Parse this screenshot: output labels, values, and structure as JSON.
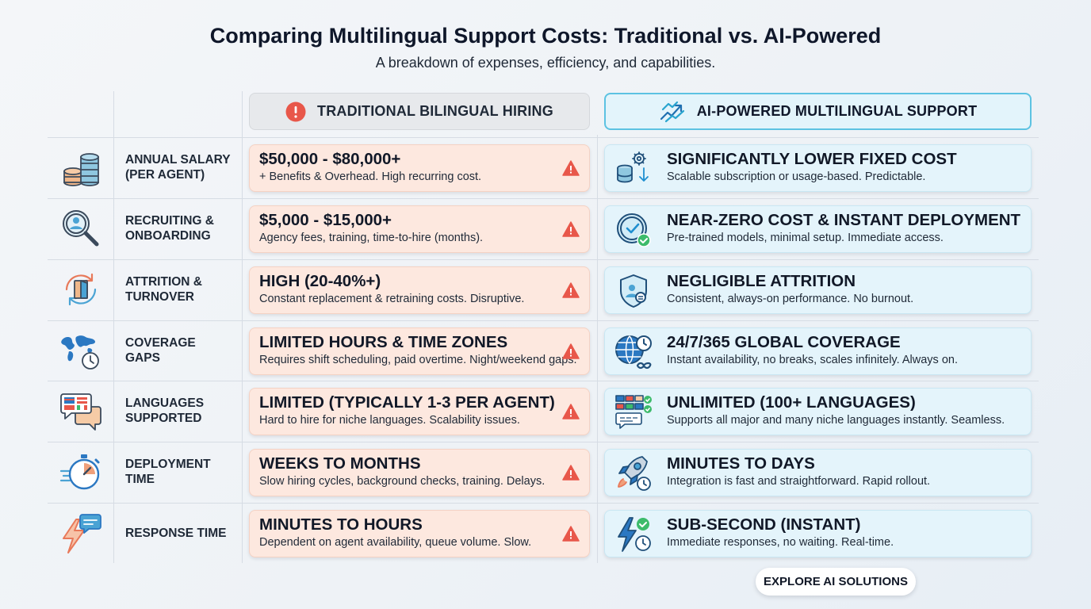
{
  "header": {
    "title": "Comparing Multilingual Support Costs: Traditional vs. AI-Powered",
    "subtitle": "A breakdown of expenses, efficiency, and capabilities."
  },
  "columns": {
    "traditional": {
      "label": "TRADITIONAL BILINGUAL HIRING",
      "icon": "alert-circle-icon"
    },
    "ai": {
      "label": "AI-POWERED MULTILINGUAL SUPPORT",
      "icon": "trend-arrows-icon"
    }
  },
  "colors": {
    "traditional_card": "#fde8df",
    "ai_card": "#e4f4fb",
    "ai_header_border": "#5cc2e2",
    "warning": "#e8574a"
  },
  "rows": [
    {
      "label_line1": "ANNUAL SALARY",
      "label_line2": "(PER AGENT)",
      "icon": "coins-stack-icon",
      "traditional": {
        "title": "$50,000 - $80,000+",
        "subtitle": "+ Benefits & Overhead. High recurring cost."
      },
      "ai": {
        "title": "SIGNIFICANTLY LOWER FIXED COST",
        "subtitle": "Scalable subscription or usage-based. Predictable.",
        "icon": "coins-gear-down-icon"
      }
    },
    {
      "label_line1": "RECRUITING &",
      "label_line2": "ONBOARDING",
      "icon": "magnifier-user-icon",
      "traditional": {
        "title": "$5,000 - $15,000+",
        "subtitle": "Agency fees, training, time-to-hire (months)."
      },
      "ai": {
        "title": "NEAR-ZERO COST & INSTANT DEPLOYMENT",
        "subtitle": "Pre-trained models, minimal setup. Immediate access.",
        "icon": "clock-check-icon"
      }
    },
    {
      "label_line1": "ATTRITION &",
      "label_line2": "TURNOVER",
      "icon": "door-cycle-icon",
      "traditional": {
        "title": "HIGH (20-40%+)",
        "subtitle": "Constant replacement & retraining costs. Disruptive."
      },
      "ai": {
        "title": "NEGLIGIBLE ATTRITION",
        "subtitle": "Consistent, always-on performance. No burnout.",
        "icon": "shield-user-icon"
      }
    },
    {
      "label_line1": "COVERAGE",
      "label_line2": "GAPS",
      "icon": "world-map-clock-icon",
      "traditional": {
        "title": "LIMITED HOURS & TIME ZONES",
        "subtitle": "Requires shift scheduling, paid overtime. Night/weekend gaps."
      },
      "ai": {
        "title": "24/7/365 GLOBAL COVERAGE",
        "subtitle": "Instant availability, no breaks, scales infinitely. Always on.",
        "icon": "globe-clock-infinity-icon"
      }
    },
    {
      "label_line1": "LANGUAGES",
      "label_line2": "SUPPORTED",
      "icon": "flag-chat-bubbles-icon",
      "traditional": {
        "title": "LIMITED (TYPICALLY 1-3 PER AGENT)",
        "subtitle": "Hard to hire for niche languages. Scalability issues."
      },
      "ai": {
        "title": "UNLIMITED (100+ LANGUAGES)",
        "subtitle": "Supports all major and many niche languages instantly. Seamless.",
        "icon": "flags-grid-chat-icon"
      }
    },
    {
      "label_line1": "DEPLOYMENT",
      "label_line2": "TIME",
      "icon": "stopwatch-icon",
      "traditional": {
        "title": "WEEKS TO MONTHS",
        "subtitle": "Slow hiring cycles, background checks, training. Delays."
      },
      "ai": {
        "title": "MINUTES TO DAYS",
        "subtitle": "Integration is fast and straightforward. Rapid rollout.",
        "icon": "rocket-clock-icon"
      }
    },
    {
      "label_line1": "RESPONSE TIME",
      "label_line2": "",
      "icon": "lightning-chat-icon",
      "traditional": {
        "title": "MINUTES TO HOURS",
        "subtitle": "Dependent on agent availability, queue volume. Slow."
      },
      "ai": {
        "title": "SUB-SECOND (INSTANT)",
        "subtitle": "Immediate responses, no waiting. Real-time.",
        "icon": "lightning-check-clock-icon"
      }
    }
  ],
  "cta": {
    "label": "EXPLORE AI SOLUTIONS"
  }
}
